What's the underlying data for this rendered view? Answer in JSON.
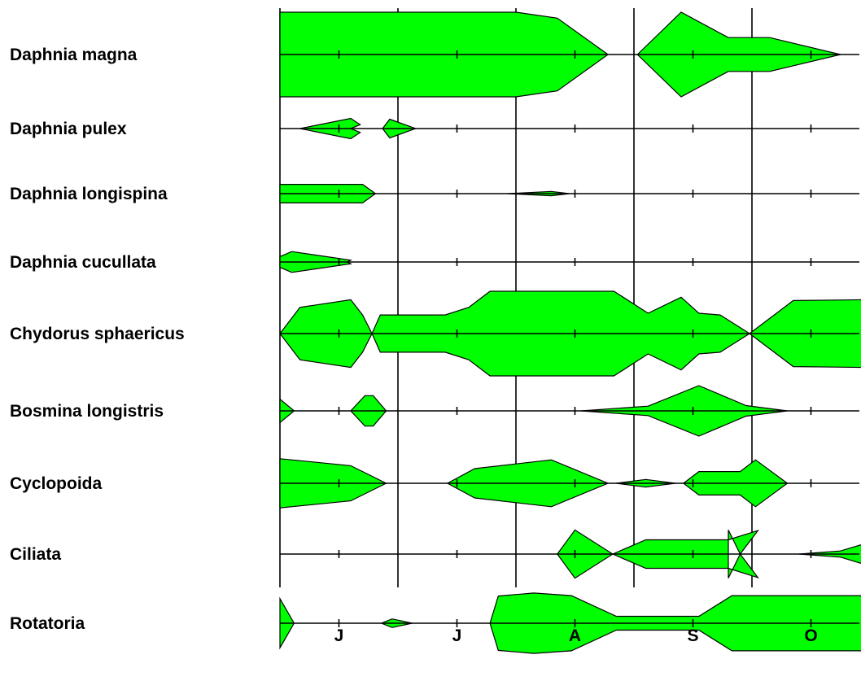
{
  "chart_data": {
    "type": "area",
    "title": "",
    "xlabel": "",
    "ylabel": "",
    "fill_color": "#00ff00",
    "line_color": "#000000",
    "background": "#ffffff",
    "grid": false,
    "months": [
      "J",
      "J",
      "A",
      "S",
      "O"
    ],
    "x_domain": [
      0,
      5
    ],
    "x_unit": "months (0 = start of June)",
    "abundance_scale": [
      0,
      1
    ],
    "series": [
      {
        "name": "Daphnia magna",
        "segments": [
          [
            [
              0,
              1
            ],
            [
              1.88,
              1
            ],
            [
              2.0,
              1
            ],
            [
              2.35,
              0.86
            ],
            [
              2.78,
              0
            ]
          ],
          [
            [
              3.03,
              0
            ],
            [
              3.4,
              1
            ],
            [
              3.8,
              0.4
            ],
            [
              4.15,
              0.4
            ],
            [
              4.75,
              0
            ]
          ]
        ]
      },
      {
        "name": "Daphnia pulex",
        "segments": [
          [
            [
              0.17,
              0
            ],
            [
              0.6,
              0.52
            ],
            [
              0.68,
              0.2
            ],
            [
              0.6,
              0
            ]
          ],
          [
            [
              0.87,
              0
            ],
            [
              0.93,
              0.48
            ],
            [
              1.15,
              0
            ]
          ]
        ]
      },
      {
        "name": "Daphnia longispina",
        "segments": [
          [
            [
              0,
              0.52
            ],
            [
              0.7,
              0.52
            ],
            [
              0.81,
              0
            ]
          ],
          [
            [
              1.93,
              0
            ],
            [
              2.3,
              0.12
            ],
            [
              2.45,
              0
            ]
          ]
        ]
      },
      {
        "name": "Daphnia cucullata",
        "segments": [
          [
            [
              0,
              0.3
            ],
            [
              0.1,
              0.58
            ],
            [
              0.6,
              0.1
            ],
            [
              0.57,
              0
            ]
          ]
        ]
      },
      {
        "name": "Chydorus sphaericus",
        "segments": [
          [
            [
              0,
              0
            ],
            [
              0.17,
              0.62
            ],
            [
              0.6,
              0.8
            ],
            [
              0.7,
              0.44
            ],
            [
              0.78,
              0
            ],
            [
              0.85,
              0.44
            ],
            [
              1.4,
              0.44
            ],
            [
              1.6,
              0.62
            ],
            [
              1.78,
              1
            ],
            [
              2.83,
              1
            ],
            [
              3.12,
              0.48
            ],
            [
              3.4,
              0.86
            ],
            [
              3.55,
              0.48
            ],
            [
              3.73,
              0.44
            ],
            [
              3.98,
              0
            ],
            [
              4.35,
              0.78
            ],
            [
              4.95,
              0.8
            ]
          ]
        ]
      },
      {
        "name": "Bosmina longistris",
        "segments": [
          [
            [
              0,
              0.4
            ],
            [
              0.12,
              0
            ]
          ],
          [
            [
              0.6,
              0
            ],
            [
              0.72,
              0.52
            ],
            [
              0.79,
              0.52
            ],
            [
              0.9,
              0
            ]
          ],
          [
            [
              2.55,
              0
            ],
            [
              3.12,
              0.16
            ],
            [
              3.55,
              0.86
            ],
            [
              3.95,
              0.18
            ],
            [
              4.3,
              0
            ]
          ]
        ]
      },
      {
        "name": "Cyclopoida",
        "segments": [
          [
            [
              0,
              0.84
            ],
            [
              0.6,
              0.6
            ],
            [
              0.9,
              0
            ]
          ],
          [
            [
              1.42,
              0
            ],
            [
              1.65,
              0.5
            ],
            [
              2.3,
              0.8
            ],
            [
              2.78,
              0
            ]
          ],
          [
            [
              2.85,
              0
            ],
            [
              3.1,
              0.13
            ],
            [
              3.35,
              0
            ]
          ],
          [
            [
              3.42,
              0
            ],
            [
              3.55,
              0.4
            ],
            [
              3.9,
              0.4
            ],
            [
              4.03,
              0.8
            ],
            [
              4.3,
              0
            ]
          ]
        ]
      },
      {
        "name": "Ciliata",
        "segments": [
          [
            [
              2.35,
              0
            ],
            [
              2.5,
              0.78
            ],
            [
              2.82,
              0
            ],
            [
              3.1,
              0.46
            ],
            [
              3.8,
              0.46
            ],
            [
              4.05,
              0.76
            ],
            [
              3.9,
              0
            ],
            [
              3.8,
              0.78
            ]
          ],
          [
            [
              4.4,
              0
            ],
            [
              4.75,
              0.1
            ],
            [
              4.95,
              0.33
            ]
          ]
        ]
      },
      {
        "name": "Rotatoria",
        "segments": [
          [
            [
              0,
              0.57
            ],
            [
              0.12,
              0
            ]
          ],
          [
            [
              0.86,
              0
            ],
            [
              0.95,
              0.1
            ],
            [
              1.12,
              0
            ]
          ],
          [
            [
              1.78,
              0
            ],
            [
              1.85,
              0.63
            ],
            [
              2.15,
              0.7
            ],
            [
              2.47,
              0.64
            ],
            [
              2.85,
              0.16
            ],
            [
              3.55,
              0.16
            ],
            [
              3.83,
              0.64
            ],
            [
              4.95,
              0.64
            ]
          ]
        ]
      }
    ]
  }
}
